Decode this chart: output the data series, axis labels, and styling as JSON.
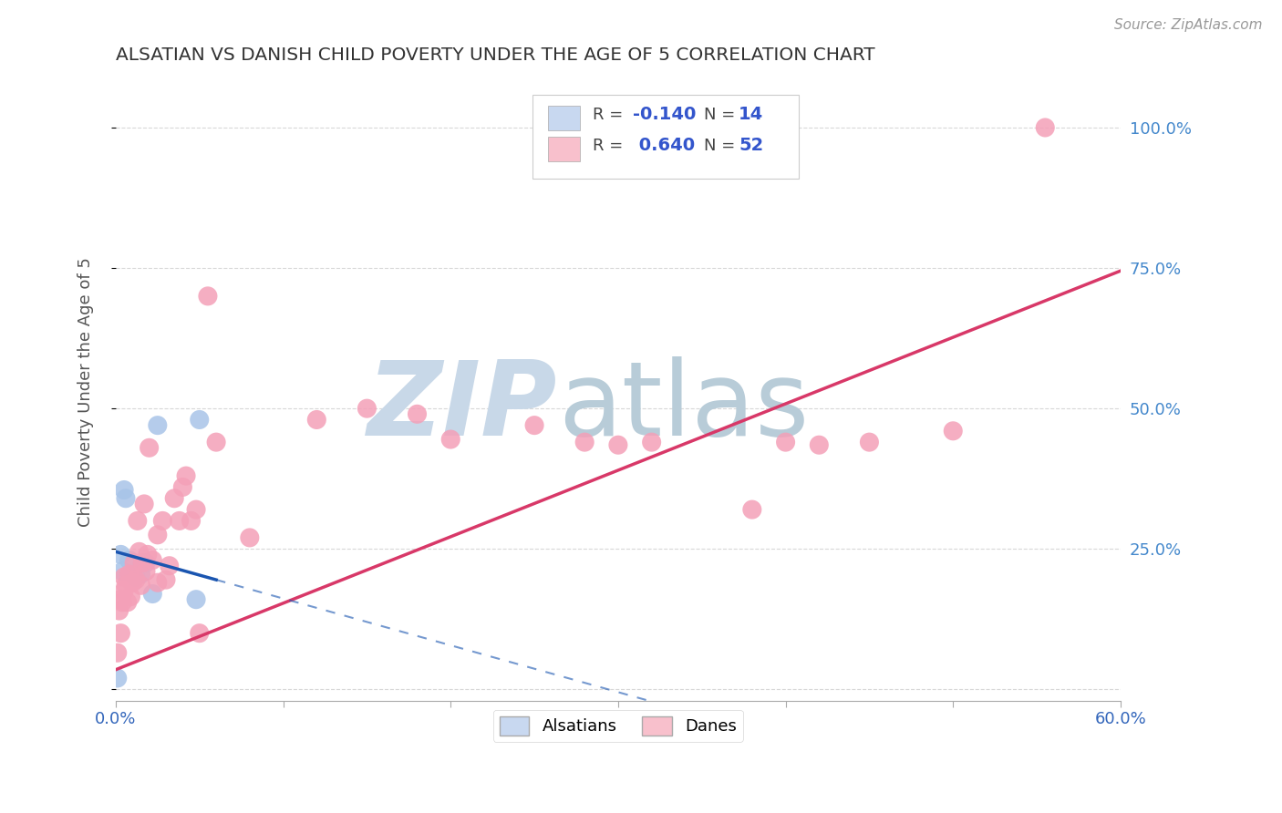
{
  "title": "ALSATIAN VS DANISH CHILD POVERTY UNDER THE AGE OF 5 CORRELATION CHART",
  "source": "Source: ZipAtlas.com",
  "ylabel": "Child Poverty Under the Age of 5",
  "xlim": [
    0.0,
    0.6
  ],
  "ylim": [
    -0.02,
    1.08
  ],
  "ytick_vals": [
    0.0,
    0.25,
    0.5,
    0.75,
    1.0
  ],
  "xtick_vals": [
    0.0,
    0.1,
    0.2,
    0.3,
    0.4,
    0.5,
    0.6
  ],
  "xtick_labels": [
    "0.0%",
    "",
    "",
    "",
    "",
    "",
    "60.0%"
  ],
  "right_ytick_labels": [
    "",
    "25.0%",
    "50.0%",
    "75.0%",
    "100.0%"
  ],
  "alsatians_color": "#a8c4e8",
  "danes_color": "#f4a0b8",
  "alsatians_line_color": "#1a55b0",
  "danes_line_color": "#d83868",
  "als_line_y0": 0.245,
  "als_line_y1": 0.195,
  "als_line_x0": 0.0,
  "als_line_x1": 0.06,
  "danes_line_y0": 0.035,
  "danes_line_y1": 0.745,
  "danes_line_x0": 0.0,
  "danes_line_x1": 0.6,
  "legend_box_als": "#c8d8f0",
  "legend_box_danes": "#f8c0cc",
  "legend_R_color": "#3355cc",
  "legend_N_color": "#3355cc",
  "legend_label_color": "#444444",
  "watermark_zip_color": "#c8d8e8",
  "watermark_atlas_color": "#b8ccd8",
  "background_color": "#ffffff",
  "grid_color": "#d8d8d8",
  "title_color": "#333333",
  "axis_label_color": "#555555",
  "right_tick_color": "#4488cc",
  "source_color": "#999999",
  "als_x": [
    0.001,
    0.003,
    0.004,
    0.005,
    0.006,
    0.008,
    0.01,
    0.012,
    0.015,
    0.018,
    0.022,
    0.025,
    0.048,
    0.05
  ],
  "als_y": [
    0.02,
    0.24,
    0.21,
    0.355,
    0.34,
    0.23,
    0.205,
    0.2,
    0.205,
    0.225,
    0.17,
    0.47,
    0.16,
    0.48
  ],
  "danes_x": [
    0.001,
    0.002,
    0.003,
    0.003,
    0.004,
    0.005,
    0.005,
    0.006,
    0.007,
    0.008,
    0.009,
    0.01,
    0.011,
    0.012,
    0.013,
    0.014,
    0.015,
    0.016,
    0.017,
    0.018,
    0.019,
    0.02,
    0.022,
    0.025,
    0.025,
    0.028,
    0.03,
    0.032,
    0.035,
    0.038,
    0.04,
    0.042,
    0.045,
    0.048,
    0.05,
    0.055,
    0.06,
    0.08,
    0.12,
    0.15,
    0.18,
    0.2,
    0.25,
    0.28,
    0.3,
    0.32,
    0.38,
    0.4,
    0.42,
    0.45,
    0.5,
    0.555
  ],
  "danes_y": [
    0.065,
    0.14,
    0.1,
    0.16,
    0.155,
    0.175,
    0.2,
    0.185,
    0.155,
    0.205,
    0.165,
    0.19,
    0.225,
    0.195,
    0.3,
    0.245,
    0.185,
    0.225,
    0.33,
    0.21,
    0.24,
    0.43,
    0.23,
    0.19,
    0.275,
    0.3,
    0.195,
    0.22,
    0.34,
    0.3,
    0.36,
    0.38,
    0.3,
    0.32,
    0.1,
    0.7,
    0.44,
    0.27,
    0.48,
    0.5,
    0.49,
    0.445,
    0.47,
    0.44,
    0.435,
    0.44,
    0.32,
    0.44,
    0.435,
    0.44,
    0.46,
    1.0
  ]
}
